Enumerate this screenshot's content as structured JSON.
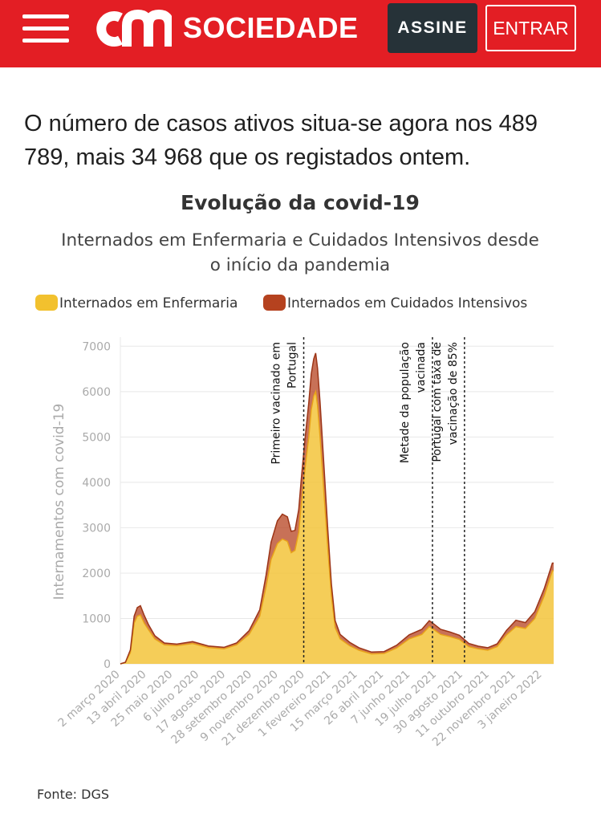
{
  "header": {
    "menu_icon": "hamburger-menu-icon",
    "logo_text": "cm",
    "section": "SOCIEDADE",
    "subscribe_label": "ASSINE",
    "login_label": "ENTRAR",
    "brand_color": "#e31e24"
  },
  "article": {
    "lead": "O número de casos ativos situa-se agora nos 489 789, mais 34 968 que os registados ontem."
  },
  "source": "Fonte: DGS",
  "chart_data": {
    "type": "area",
    "stacked": true,
    "title": "Evolução da covid-19",
    "subtitle_lines": [
      "Internados em Enfermaria e Cuidados Intensivos desde",
      "o início da pandemia"
    ],
    "ylabel": "Internamentos com covid-19",
    "xlabel": "",
    "ylim": [
      0,
      7200
    ],
    "yticks": [
      0,
      1000,
      2000,
      3000,
      4000,
      5000,
      6000,
      7000
    ],
    "x_range_days": [
      0,
      690
    ],
    "xtick_labels": [
      {
        "day": 0,
        "label": "2 março 2020"
      },
      {
        "day": 42,
        "label": "13 abril 2020"
      },
      {
        "day": 84,
        "label": "25 maio 2020"
      },
      {
        "day": 126,
        "label": "6 julho 2020"
      },
      {
        "day": 168,
        "label": "17 agosto 2020"
      },
      {
        "day": 210,
        "label": "28 setembro 2020"
      },
      {
        "day": 252,
        "label": "9 novembro 2020"
      },
      {
        "day": 294,
        "label": "21 dezembro 2020"
      },
      {
        "day": 336,
        "label": "1 fevereiro 2021"
      },
      {
        "day": 378,
        "label": "15 março 2021"
      },
      {
        "day": 420,
        "label": "26 abril 2021"
      },
      {
        "day": 462,
        "label": "7 junho 2021"
      },
      {
        "day": 504,
        "label": "19 julho 2021"
      },
      {
        "day": 546,
        "label": "30 agosto 2021"
      },
      {
        "day": 588,
        "label": "11 outubro 2021"
      },
      {
        "day": 630,
        "label": "22 novembro 2021"
      },
      {
        "day": 672,
        "label": "3 janeiro 2022"
      }
    ],
    "series": [
      {
        "name": "Internados em Enfermaria",
        "color": "#f2c12e",
        "points": [
          [
            0,
            0
          ],
          [
            8,
            30
          ],
          [
            16,
            250
          ],
          [
            22,
            900
          ],
          [
            27,
            1050
          ],
          [
            32,
            1080
          ],
          [
            38,
            900
          ],
          [
            45,
            750
          ],
          [
            55,
            550
          ],
          [
            70,
            420
          ],
          [
            90,
            400
          ],
          [
            115,
            450
          ],
          [
            140,
            360
          ],
          [
            165,
            330
          ],
          [
            185,
            420
          ],
          [
            205,
            650
          ],
          [
            222,
            1050
          ],
          [
            232,
            1700
          ],
          [
            240,
            2300
          ],
          [
            250,
            2650
          ],
          [
            258,
            2750
          ],
          [
            266,
            2700
          ],
          [
            272,
            2450
          ],
          [
            278,
            2500
          ],
          [
            284,
            2900
          ],
          [
            288,
            3500
          ],
          [
            294,
            4300
          ],
          [
            300,
            5000
          ],
          [
            304,
            5600
          ],
          [
            308,
            5900
          ],
          [
            311,
            6000
          ],
          [
            314,
            5700
          ],
          [
            318,
            5000
          ],
          [
            324,
            3800
          ],
          [
            330,
            2600
          ],
          [
            336,
            1500
          ],
          [
            342,
            800
          ],
          [
            350,
            550
          ],
          [
            365,
            400
          ],
          [
            380,
            300
          ],
          [
            400,
            220
          ],
          [
            420,
            230
          ],
          [
            440,
            350
          ],
          [
            460,
            550
          ],
          [
            480,
            650
          ],
          [
            492,
            820
          ],
          [
            500,
            750
          ],
          [
            510,
            650
          ],
          [
            525,
            600
          ],
          [
            540,
            540
          ],
          [
            555,
            380
          ],
          [
            570,
            330
          ],
          [
            585,
            300
          ],
          [
            600,
            380
          ],
          [
            615,
            640
          ],
          [
            630,
            820
          ],
          [
            645,
            780
          ],
          [
            660,
            1000
          ],
          [
            675,
            1500
          ],
          [
            688,
            2050
          ],
          [
            690,
            2050
          ]
        ]
      },
      {
        "name": "Internados em Cuidados Intensivos",
        "color": "#b5421f",
        "points": [
          [
            0,
            0
          ],
          [
            8,
            5
          ],
          [
            16,
            60
          ],
          [
            22,
            150
          ],
          [
            27,
            190
          ],
          [
            32,
            200
          ],
          [
            38,
            170
          ],
          [
            45,
            110
          ],
          [
            55,
            70
          ],
          [
            70,
            40
          ],
          [
            90,
            35
          ],
          [
            115,
            40
          ],
          [
            140,
            35
          ],
          [
            165,
            35
          ],
          [
            185,
            40
          ],
          [
            205,
            80
          ],
          [
            222,
            140
          ],
          [
            232,
            260
          ],
          [
            240,
            380
          ],
          [
            250,
            500
          ],
          [
            258,
            550
          ],
          [
            266,
            540
          ],
          [
            272,
            470
          ],
          [
            278,
            440
          ],
          [
            284,
            500
          ],
          [
            288,
            560
          ],
          [
            294,
            650
          ],
          [
            300,
            750
          ],
          [
            304,
            790
          ],
          [
            308,
            820
          ],
          [
            311,
            850
          ],
          [
            314,
            820
          ],
          [
            318,
            760
          ],
          [
            324,
            600
          ],
          [
            330,
            420
          ],
          [
            336,
            260
          ],
          [
            342,
            150
          ],
          [
            350,
            100
          ],
          [
            365,
            75
          ],
          [
            380,
            55
          ],
          [
            400,
            40
          ],
          [
            420,
            40
          ],
          [
            440,
            60
          ],
          [
            460,
            90
          ],
          [
            480,
            110
          ],
          [
            492,
            130
          ],
          [
            500,
            120
          ],
          [
            510,
            110
          ],
          [
            525,
            100
          ],
          [
            540,
            90
          ],
          [
            555,
            70
          ],
          [
            570,
            60
          ],
          [
            585,
            55
          ],
          [
            600,
            60
          ],
          [
            615,
            100
          ],
          [
            630,
            140
          ],
          [
            645,
            130
          ],
          [
            660,
            150
          ],
          [
            675,
            160
          ],
          [
            688,
            170
          ],
          [
            690,
            170
          ]
        ]
      }
    ],
    "annotations": [
      {
        "day": 292,
        "lines": [
          "Primeiro vacinado em",
          "Portugal"
        ]
      },
      {
        "day": 497,
        "lines": [
          "Metade da população",
          "vacinada"
        ]
      },
      {
        "day": 548,
        "lines": [
          "Portugal com taxa de",
          "vacinação de 85%"
        ]
      }
    ],
    "legend": {
      "position": "top-left"
    }
  }
}
